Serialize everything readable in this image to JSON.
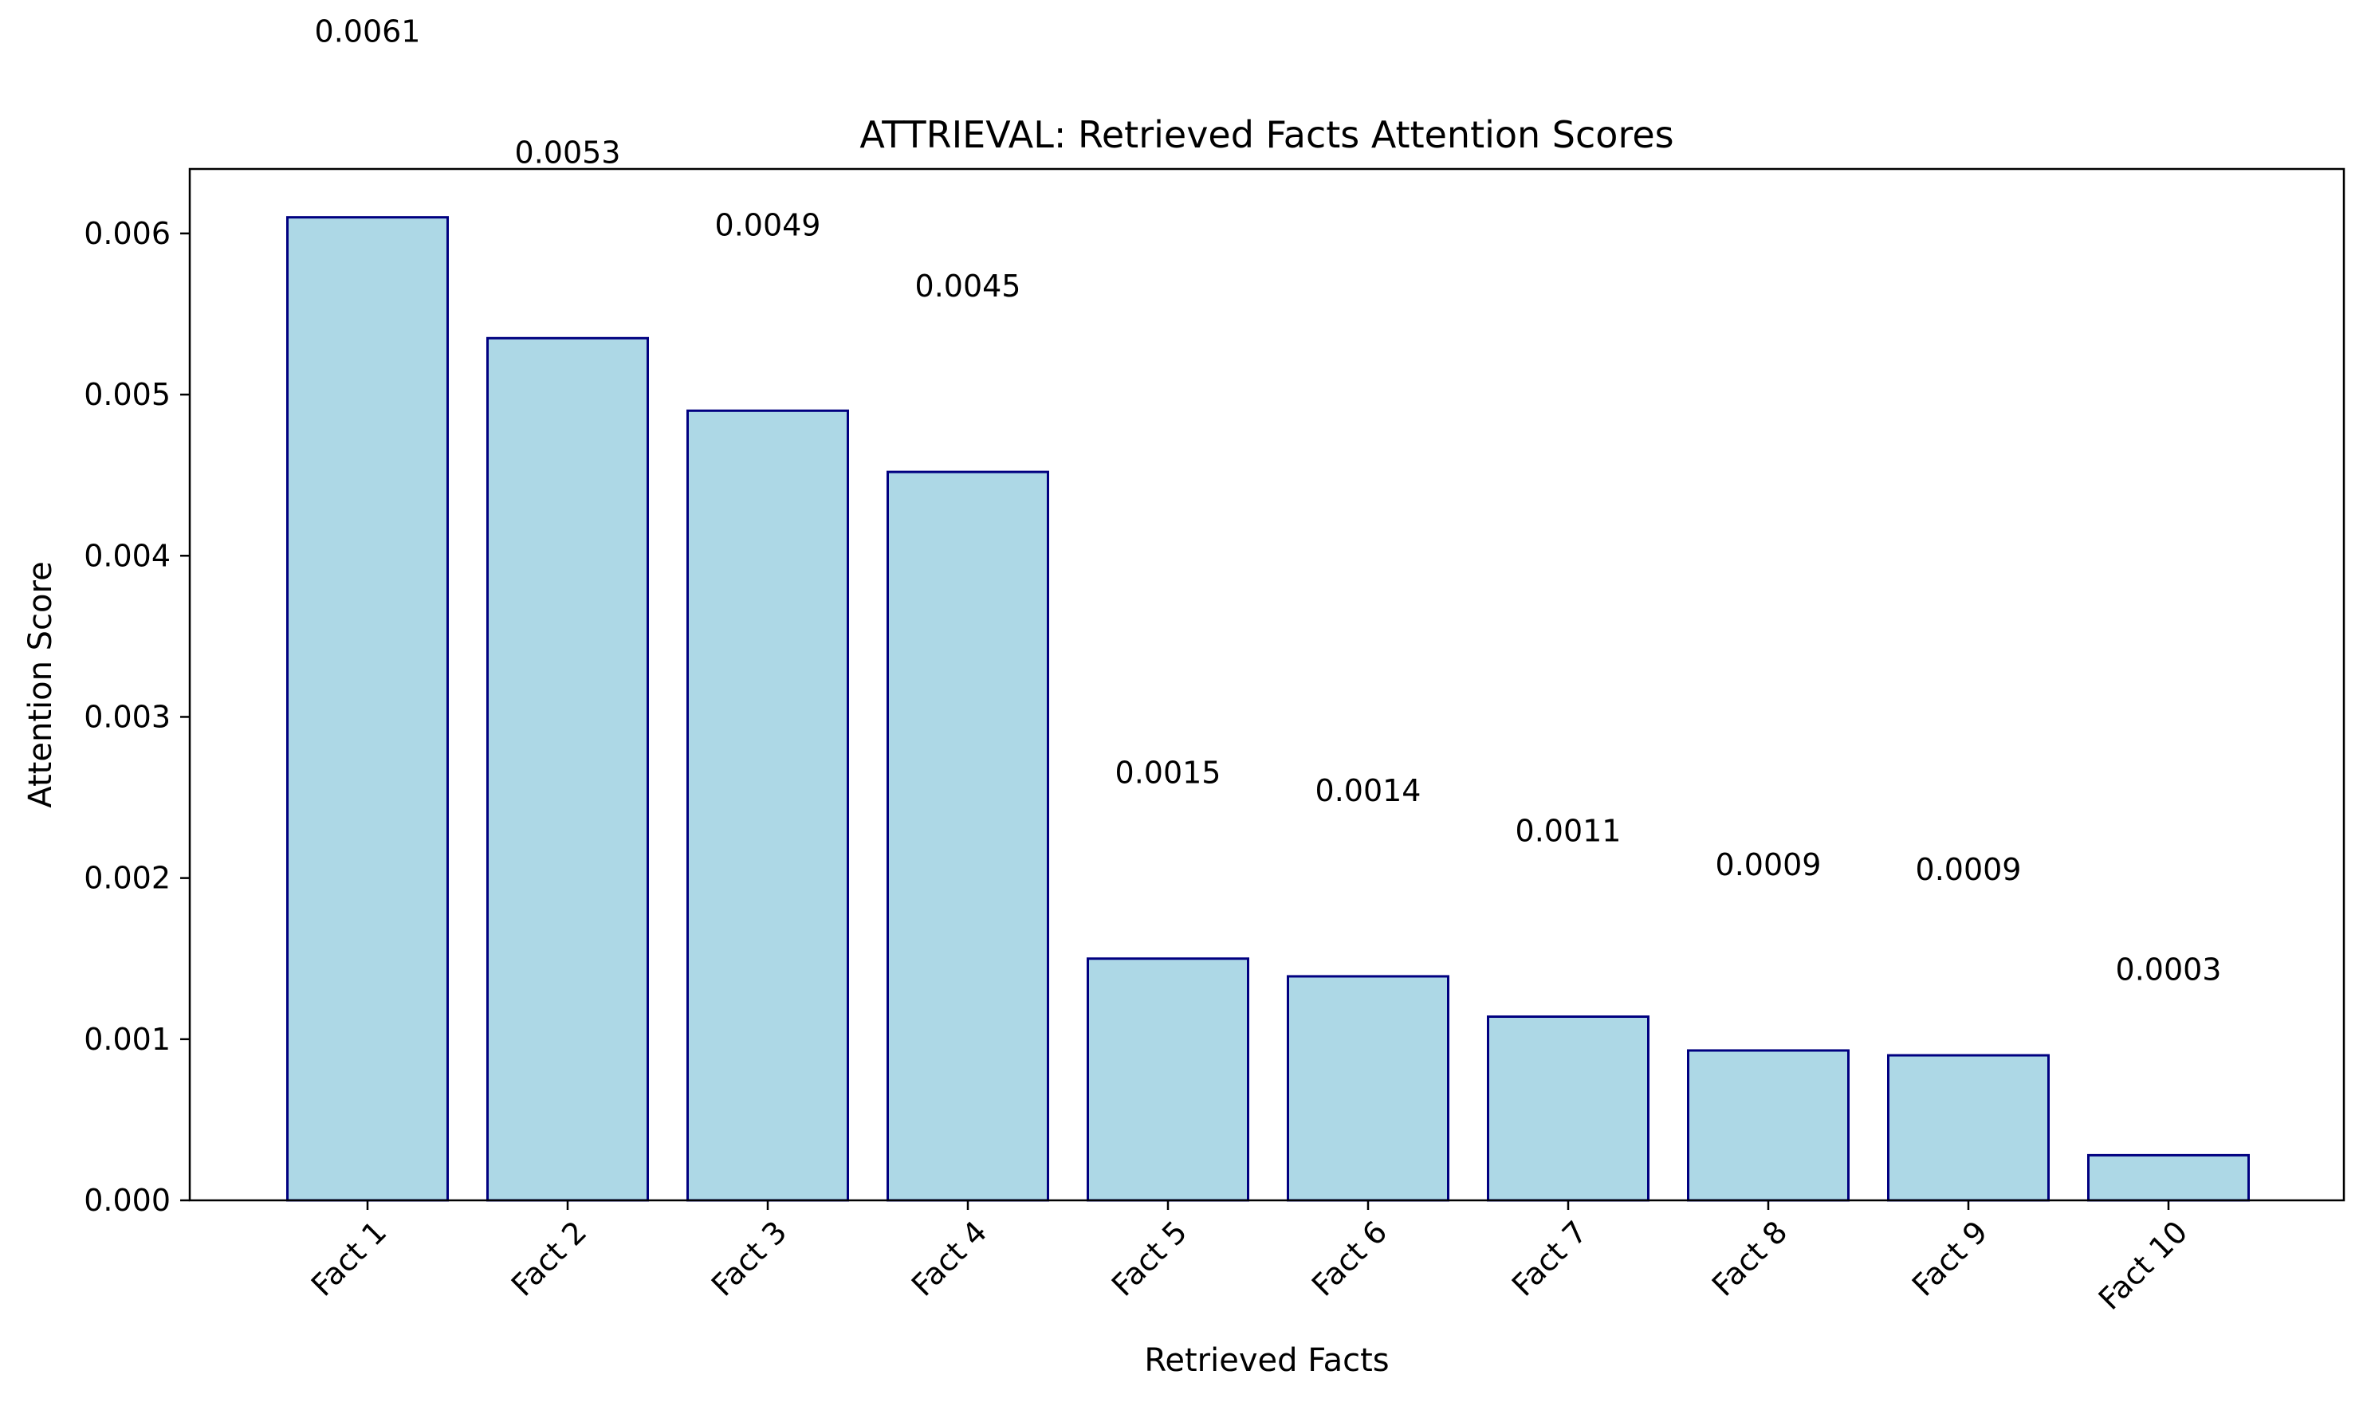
{
  "chart_data": {
    "type": "bar",
    "title": "ATTRIEVAL: Retrieved Facts Attention Scores",
    "xlabel": "Retrieved Facts",
    "ylabel": "Attention Score",
    "categories": [
      "Fact 1",
      "Fact 2",
      "Fact 3",
      "Fact 4",
      "Fact 5",
      "Fact 6",
      "Fact 7",
      "Fact 8",
      "Fact 9",
      "Fact 10"
    ],
    "values": [
      0.0061,
      0.00535,
      0.0049,
      0.00452,
      0.0015,
      0.00139,
      0.00114,
      0.00093,
      0.0009,
      0.00028
    ],
    "data_labels": [
      "0.0061",
      "0.0053",
      "0.0049",
      "0.0045",
      "0.0015",
      "0.0014",
      "0.0011",
      "0.0009",
      "0.0009",
      "0.0003"
    ],
    "ylim": [
      0,
      0.0064
    ],
    "yticks": [
      0,
      0.001,
      0.002,
      0.003,
      0.004,
      0.005,
      0.006
    ],
    "ytick_labels": [
      "0.000",
      "0.001",
      "0.002",
      "0.003",
      "0.004",
      "0.005",
      "0.006"
    ],
    "grid": false,
    "legend": "none",
    "bar_color": "#add8e6",
    "bar_edge_color": "#000080"
  }
}
